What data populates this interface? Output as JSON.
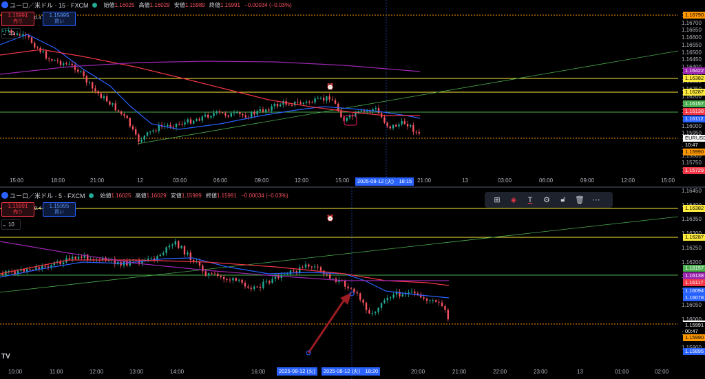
{
  "top": {
    "symbol": "ユーロ／米ドル · 15 · FXCM",
    "ohlc": {
      "o_lbl": "始値",
      "o": "1.16025",
      "h_lbl": "高値",
      "h": "1.16029",
      "l_lbl": "安値",
      "l": "1.15989",
      "c_lbl": "終値",
      "c": "1.15991",
      "chg": "−0.00034 (−0.03%)"
    },
    "sell_price": "1.15991",
    "sell_lbl": "売り",
    "spread": "0.4",
    "buy_price": "1.15995",
    "buy_lbl": "買い",
    "lots": "10",
    "yaxis": [
      "1.16790",
      "1.16700",
      "1.16650",
      "1.16600",
      "1.16550",
      "1.16500",
      "1.16450",
      "1.16400",
      "1.16350",
      "1.16300",
      "1.16250",
      "1.16200",
      "1.16150",
      "1.16100",
      "1.16050",
      "1.16000",
      "1.15950",
      "1.15900",
      "1.15850",
      "1.15800",
      "1.15750",
      "1.15700"
    ],
    "xaxis": [
      "15:00",
      "18:00",
      "21:00",
      "12",
      "03:00",
      "06:00",
      "09:00",
      "12:00",
      "15:00",
      "21:00",
      "13",
      "03:00",
      "06:00",
      "09:00",
      "12:00",
      "15:00"
    ],
    "x_cursor": "2025-08-12 (火)　18:15",
    "price_tags": [
      {
        "v": "1.16790",
        "c": "#ff9800",
        "t": "#000"
      },
      {
        "v": "1.16422",
        "c": "#9c27b0",
        "t": "#fff"
      },
      {
        "v": "1.16382",
        "c": "#ffeb3b",
        "t": "#000"
      },
      {
        "v": "1.16287",
        "c": "#ffeb3b",
        "t": "#000"
      },
      {
        "v": "1.16157",
        "c": "#4caf50",
        "t": "#fff"
      },
      {
        "v": "1.16138",
        "c": "#f23645",
        "t": "#fff"
      },
      {
        "v": "1.16112",
        "c": "#2962ff",
        "t": "#fff"
      },
      {
        "v": "EURUSD",
        "c": "#fff",
        "t": "#000"
      },
      {
        "v": "1.15991",
        "c": "#000",
        "t": "#fff"
      },
      {
        "v": "10:47",
        "c": "#000",
        "t": "#fff"
      },
      {
        "v": "1.15990",
        "c": "#ff9800",
        "t": "#000"
      },
      {
        "v": "1.15729",
        "c": "#f23645",
        "t": "#fff"
      }
    ]
  },
  "bottom": {
    "symbol": "ユーロ／米ドル · 5 · FXCM",
    "ohlc": {
      "o_lbl": "始値",
      "o": "1.16025",
      "h_lbl": "高値",
      "h": "1.16029",
      "l_lbl": "安値",
      "l": "1.15989",
      "c_lbl": "終値",
      "c": "1.15991",
      "chg": "−0.00034 (−0.03%)"
    },
    "sell_price": "1.15991",
    "sell_lbl": "売り",
    "spread": "0.4",
    "buy_price": "1.15995",
    "buy_lbl": "買い",
    "lots": "10",
    "yaxis": [
      "1.16450",
      "1.16400",
      "1.16350",
      "1.16300",
      "1.16250",
      "1.16200",
      "1.16150",
      "1.16100",
      "1.16050",
      "1.16000",
      "1.15950",
      "1.15900"
    ],
    "xaxis": [
      "10:00",
      "11:00",
      "12:00",
      "13:00",
      "14:00",
      "16:00",
      "20:00",
      "21:00",
      "22:00",
      "23:00",
      "13",
      "01:00",
      "02:00"
    ],
    "x_cursor1": "2025-08-12 (火)",
    "x_cursor2": "2025-08-12 (火)　18:20",
    "price_tags": [
      {
        "v": "1.16382",
        "c": "#ffeb3b",
        "t": "#000"
      },
      {
        "v": "1.16287",
        "c": "#ffeb3b",
        "t": "#000"
      },
      {
        "v": "1.16157",
        "c": "#4caf50",
        "t": "#fff"
      },
      {
        "v": "1.16138",
        "c": "#9c27b0",
        "t": "#fff"
      },
      {
        "v": "1.16117",
        "c": "#f23645",
        "t": "#fff"
      },
      {
        "v": "1.16094",
        "c": "#2962ff",
        "t": "#fff"
      },
      {
        "v": "1.16078",
        "c": "#2962ff",
        "t": "#fff"
      },
      {
        "v": "EURUSD",
        "c": "#fff",
        "t": "#000"
      },
      {
        "v": "1.15991",
        "c": "#000",
        "t": "#fff"
      },
      {
        "v": "00:47",
        "c": "#000",
        "t": "#fff"
      },
      {
        "v": "1.15990",
        "c": "#ff9800",
        "t": "#000"
      },
      {
        "v": "1.15895",
        "c": "#2962ff",
        "t": "#fff"
      }
    ]
  },
  "toolbar": {
    "icons": [
      "add-icon",
      "fill-icon",
      "text-icon",
      "settings-icon",
      "lock-icon",
      "trash-icon",
      "more-icon"
    ]
  },
  "logo": "TV"
}
